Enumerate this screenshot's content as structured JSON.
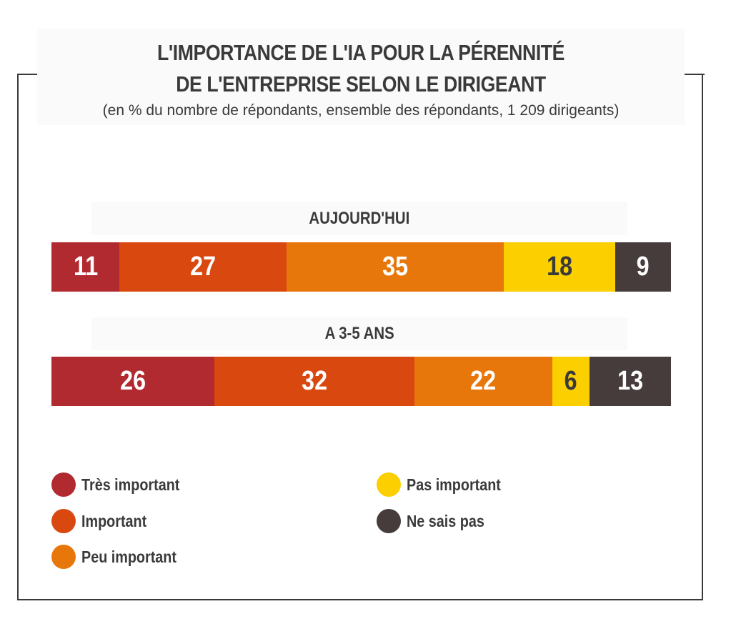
{
  "title_line1": "L'IMPORTANCE DE L'IA POUR LA PÉRENNITÉ",
  "title_line2": "DE L'ENTREPRISE SELON LE DIRIGEANT",
  "subtitle": "(en % du nombre de répondants, ensemble des répondants, 1 209 dirigeants)",
  "chart_data": {
    "type": "bar",
    "orientation": "horizontal-stacked-100",
    "title": "L'IMPORTANCE DE L'IA POUR LA PÉRENNITÉ DE L'ENTREPRISE SELON LE DIRIGEANT",
    "subtitle": "(en % du nombre de répondants, ensemble des répondants, 1 209 dirigeants)",
    "categories": [
      "AUJOURD'HUI",
      "A 3-5 ANS"
    ],
    "series": [
      {
        "name": "Très important",
        "color": "#b02a30",
        "values": [
          11,
          26
        ]
      },
      {
        "name": "Important",
        "color": "#d9480f",
        "values": [
          27,
          32
        ]
      },
      {
        "name": "Peu important",
        "color": "#e8770b",
        "values": [
          35,
          22
        ]
      },
      {
        "name": "Pas important",
        "color": "#fccf00",
        "values": [
          18,
          6
        ]
      },
      {
        "name": "Ne sais pas",
        "color": "#463c3c",
        "values": [
          9,
          13
        ]
      }
    ],
    "label_colors": [
      "#ffffff",
      "#ffffff",
      "#ffffff",
      "#3a3a3a",
      "#ffffff"
    ],
    "legend_position": "bottom",
    "grid": false
  }
}
